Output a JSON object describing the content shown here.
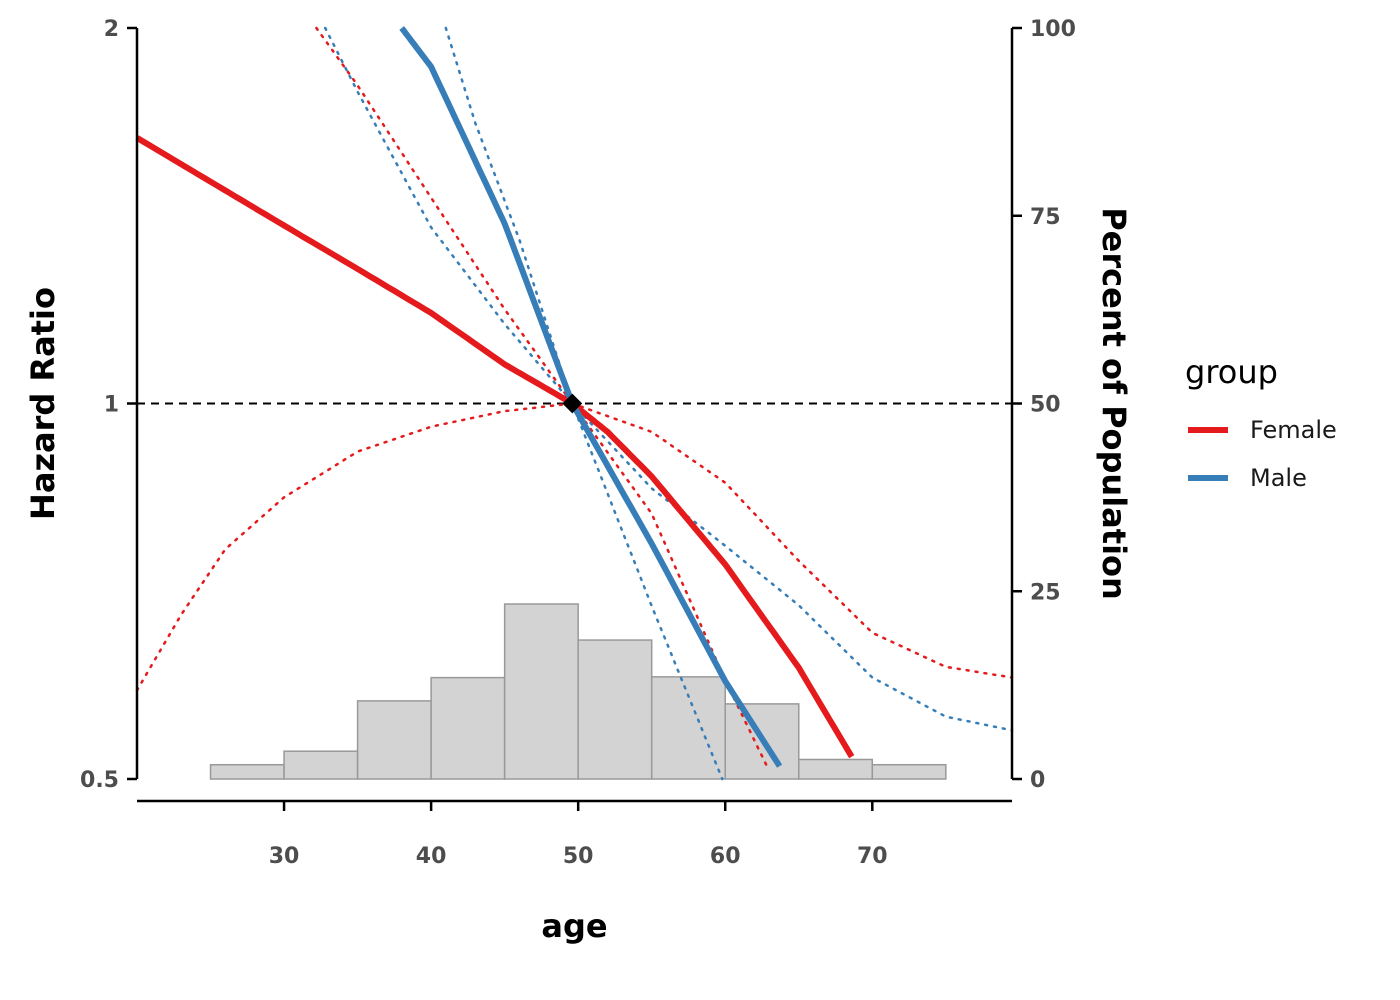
{
  "chart_data": {
    "type": "line",
    "xlabel": "age",
    "ylabel": "Hazard Ratio",
    "y2label": "Percent of Population",
    "xlim": [
      20.0,
      79.5
    ],
    "ylim": [
      0.5,
      2.0
    ],
    "y_scale": "log",
    "y2lim": [
      0,
      100
    ],
    "x_ticks": [
      30,
      40,
      50,
      60,
      70
    ],
    "x_tick_labels": [
      "30",
      "40",
      "50",
      "60",
      "70"
    ],
    "y_ticks": [
      0.5,
      1,
      2
    ],
    "y_tick_labels": [
      "0.5",
      "1",
      "2"
    ],
    "y2_ticks": [
      0,
      25,
      50,
      75,
      100
    ],
    "y2_tick_labels": [
      "0",
      "25",
      "50",
      "75",
      "100"
    ],
    "reference_line": {
      "y": 1,
      "style": "dashed",
      "color": "#000000"
    },
    "reference_point": {
      "x": 49.6,
      "y": 1
    },
    "legend": {
      "title": "group",
      "position": "right"
    },
    "series": [
      {
        "name": "Female",
        "color": "#e41a1c",
        "estimate": {
          "x": [
            20,
            25,
            30,
            35,
            40,
            45,
            49.6,
            52,
            55,
            60,
            65,
            68.6
          ],
          "y": [
            1.633,
            1.506,
            1.389,
            1.282,
            1.182,
            1.075,
            1.0,
            0.949,
            0.874,
            0.743,
            0.614,
            0.521
          ]
        },
        "ci_lower": {
          "x": [
            20,
            23,
            26,
            30,
            35,
            40,
            45,
            49.6
          ],
          "y": [
            0.589,
            0.677,
            0.764,
            0.841,
            0.915,
            0.958,
            0.986,
            1.0
          ]
        },
        "ci_upper": {
          "x": [
            49.6,
            55,
            60,
            65,
            70,
            75,
            79.5
          ],
          "y": [
            1.0,
            0.949,
            0.864,
            0.748,
            0.655,
            0.615,
            0.603
          ]
        },
        "ci_steep": {
          "x": [
            32.2,
            35,
            40,
            45,
            49.6,
            55,
            60,
            62.8
          ],
          "y": [
            2.0,
            1.799,
            1.462,
            1.19,
            1.0,
            0.816,
            0.6,
            0.513
          ]
        }
      },
      {
        "name": "Male",
        "color": "#377eb8",
        "estimate": {
          "x": [
            38,
            40,
            45,
            49.6,
            55,
            60,
            63.7
          ],
          "y": [
            2.0,
            1.862,
            1.394,
            1.0,
            0.772,
            0.599,
            0.512
          ]
        },
        "ci_lower": {
          "x": [
            32.8,
            35,
            40,
            45,
            49.6,
            55,
            59.8
          ],
          "y": [
            2.0,
            1.778,
            1.384,
            1.158,
            1.0,
            0.688,
            0.5
          ]
        },
        "ci_upper": {
          "x": [
            41,
            43,
            46,
            49.6,
            55,
            60,
            65,
            70,
            75,
            79.5
          ],
          "y": [
            2.0,
            1.679,
            1.353,
            1.0,
            0.855,
            0.769,
            0.689,
            0.603,
            0.561,
            0.547
          ]
        }
      }
    ],
    "histogram": {
      "color": "#d3d3d3",
      "edge_color": "#999999",
      "bins": [
        {
          "x0": 25,
          "x1": 30,
          "pct": 1.9
        },
        {
          "x0": 30,
          "x1": 35,
          "pct": 3.7
        },
        {
          "x0": 35,
          "x1": 40,
          "pct": 10.4
        },
        {
          "x0": 40,
          "x1": 45,
          "pct": 13.5
        },
        {
          "x0": 45,
          "x1": 50,
          "pct": 23.3
        },
        {
          "x0": 50,
          "x1": 55,
          "pct": 18.5
        },
        {
          "x0": 55,
          "x1": 60,
          "pct": 13.6
        },
        {
          "x0": 60,
          "x1": 65,
          "pct": 10.0
        },
        {
          "x0": 65,
          "x1": 70,
          "pct": 2.6
        },
        {
          "x0": 70,
          "x1": 75,
          "pct": 1.9
        }
      ]
    }
  }
}
